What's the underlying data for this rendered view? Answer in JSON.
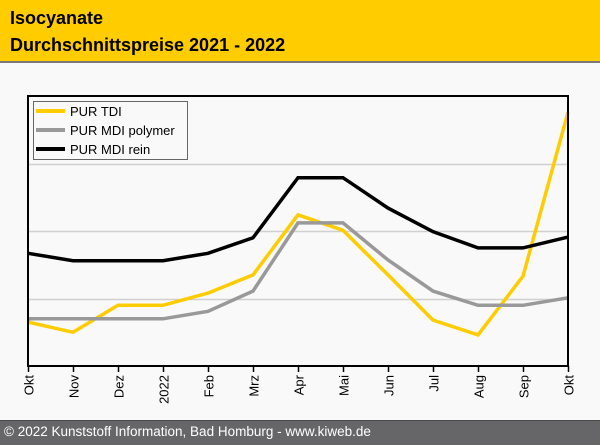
{
  "header": {
    "title_line1": "Isocyanate",
    "title_line2": "Durchschnittspreise 2021 - 2022"
  },
  "footer": {
    "text": "© 2022 Kunststoff Information, Bad Homburg - www.kiweb.de"
  },
  "chart_data": {
    "type": "line",
    "title": "Isocyanate Durchschnittspreise 2021 - 2022",
    "xlabel": "",
    "ylabel": "",
    "categories": [
      "Okt",
      "Nov",
      "Dez",
      "2022",
      "Feb",
      "Mrz",
      "Apr",
      "Mai",
      "Jun",
      "Jul",
      "Aug",
      "Sep",
      "Okt"
    ],
    "ylim": [
      0,
      4
    ],
    "y_gridlines": [
      1,
      2,
      3
    ],
    "y_tick_labels_shown": false,
    "grid": true,
    "legend_position": "top-left",
    "series": [
      {
        "name": "PUR TDI",
        "color": "#ffcc00",
        "values": [
          0.65,
          0.5,
          0.9,
          0.9,
          1.08,
          1.35,
          2.24,
          2.01,
          1.35,
          0.68,
          0.46,
          1.33,
          3.76
        ]
      },
      {
        "name": "PUR MDI polymer",
        "color": "#999999",
        "values": [
          0.7,
          0.7,
          0.7,
          0.7,
          0.81,
          1.11,
          2.12,
          2.12,
          1.57,
          1.11,
          0.9,
          0.9,
          1.01
        ]
      },
      {
        "name": "PUR MDI rein",
        "color": "#000000",
        "values": [
          1.67,
          1.56,
          1.56,
          1.56,
          1.67,
          1.9,
          2.79,
          2.79,
          2.34,
          1.99,
          1.75,
          1.75,
          1.91
        ]
      }
    ]
  }
}
